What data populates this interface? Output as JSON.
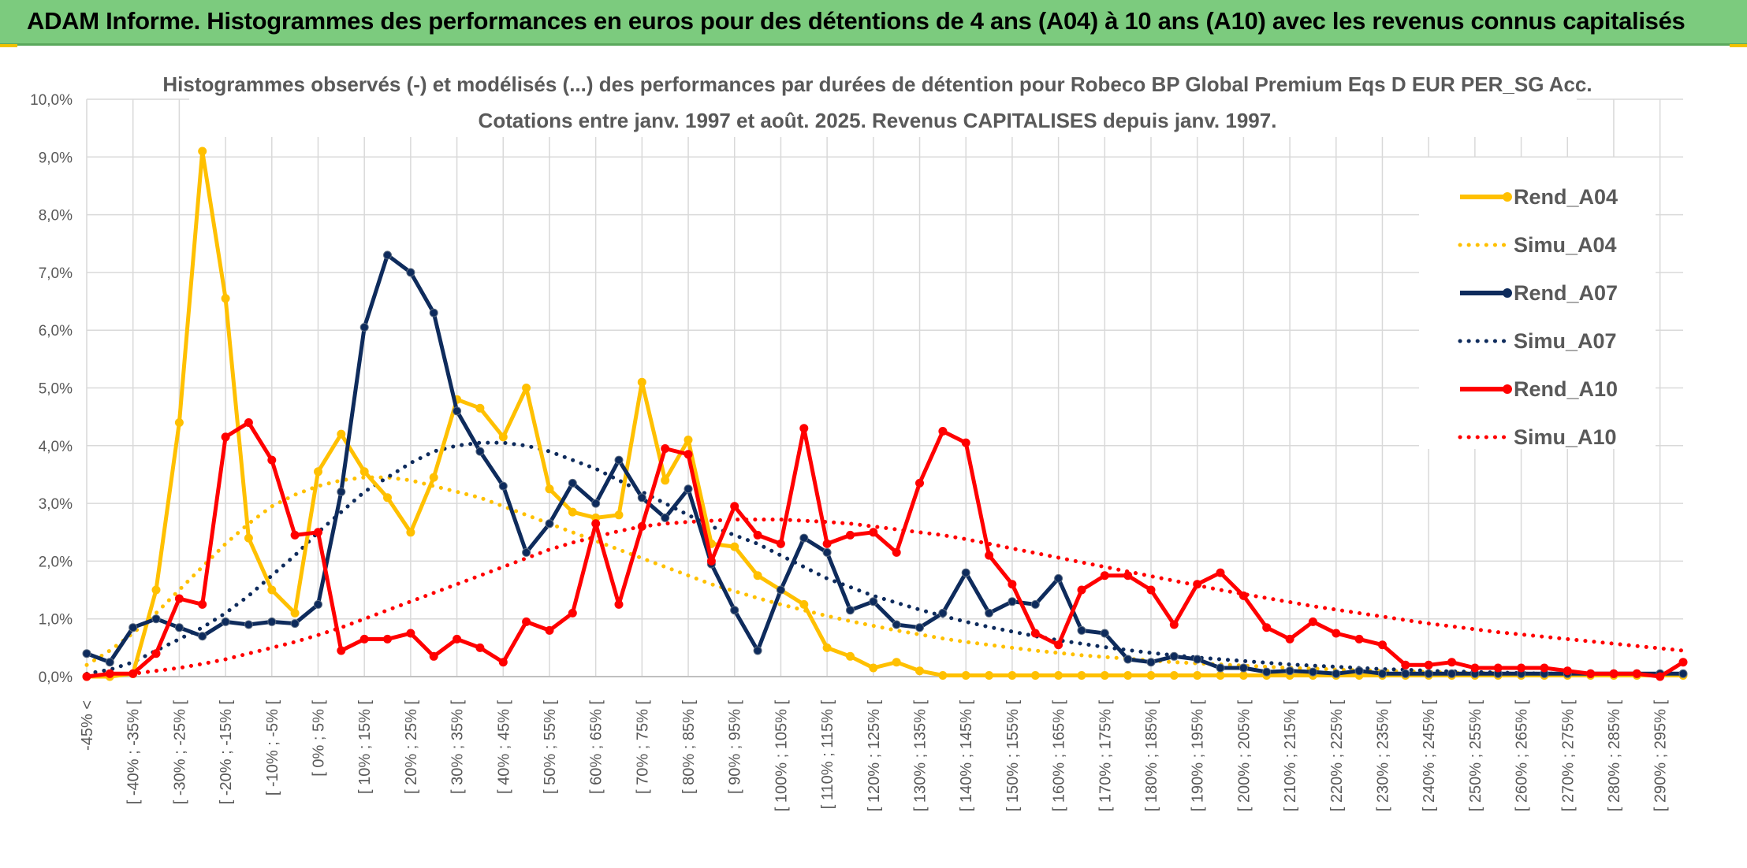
{
  "banner": {
    "title": "ADAM Informe. Histogrammes des performances en euros pour des détentions de 4 ans (A04) à 10 ans (A10) avec les revenus connus capitalisés"
  },
  "colors": {
    "banner": "#7ccb7e",
    "a04": "#FFC000",
    "a07": "#0E2B5C",
    "a10": "#FF0000",
    "grid": "#d9d9d9"
  },
  "chart_data": {
    "type": "line",
    "title_line1": "Histogrammes observés (-) et modélisés (...) des performances par durées de détention pour Robeco BP Global Premium Eqs D EUR PER_SG Acc.",
    "title_line2": "Cotations entre janv. 1997 et août. 2025. Revenus CAPITALISES depuis janv. 1997.",
    "ylim": [
      0,
      10
    ],
    "yticks": [
      "0,0%",
      "1,0%",
      "2,0%",
      "3,0%",
      "4,0%",
      "5,0%",
      "6,0%",
      "7,0%",
      "8,0%",
      "9,0%",
      "10,0%"
    ],
    "grid": true,
    "legend_position": "right",
    "categories": [
      "-45% <",
      "",
      "[ -40% ; -35% [",
      "",
      "[ -30% ; -25% [",
      "",
      "[ -20% ; -15% [",
      "",
      "[ -10% ; -5% [",
      "",
      "[ 0% ; 5% [",
      "",
      "[ 10% ; 15% [",
      "",
      "[ 20% ; 25% [",
      "",
      "[ 30% ; 35% [",
      "",
      "[ 40% ; 45% [",
      "",
      "[ 50% ; 55% [",
      "",
      "[ 60% ; 65% [",
      "",
      "[ 70% ; 75% [",
      "",
      "[ 80% ; 85% [",
      "",
      "[ 90% ; 95% [",
      "",
      "[ 100% ; 105% [",
      "",
      "[ 110% ; 115% [",
      "",
      "[ 120% ; 125% [",
      "",
      "[ 130% ; 135% [",
      "",
      "[ 140% ; 145% [",
      "",
      "[ 150% ; 155% [",
      "",
      "[ 160% ; 165% [",
      "",
      "[ 170% ; 175% [",
      "",
      "[ 180% ; 185% [",
      "",
      "[ 190% ; 195% [",
      "",
      "[ 200% ; 205% [",
      "",
      "[ 210% ; 215% [",
      "",
      "[ 220% ; 225% [",
      "",
      "[ 230% ; 235% [",
      "",
      "[ 240% ; 245% [",
      "",
      "[ 250% ; 255% [",
      "",
      "[ 260% ; 265% [",
      "",
      "[ 270% ; 275% [",
      "",
      "[ 280% ; 285% [",
      "",
      "[ 290% ; 295% [",
      ""
    ],
    "series": [
      {
        "name": "Rend_A04",
        "style": "solid",
        "color": "#FFC000",
        "values": [
          0.0,
          0.0,
          0.05,
          1.5,
          4.4,
          9.1,
          6.55,
          2.4,
          1.5,
          1.1,
          3.55,
          4.2,
          3.55,
          3.1,
          2.5,
          3.45,
          4.8,
          4.65,
          4.15,
          5.0,
          3.25,
          2.85,
          2.75,
          2.8,
          5.1,
          3.4,
          4.1,
          2.3,
          2.25,
          1.75,
          1.5,
          1.25,
          0.5,
          0.35,
          0.15,
          0.25,
          0.1,
          0.02,
          0.02,
          0.02,
          0.02,
          0.02,
          0.02,
          0.02,
          0.02,
          0.02,
          0.02,
          0.02,
          0.02,
          0.02,
          0.02,
          0.02,
          0.02,
          0.02,
          0.02,
          0.02,
          0.02,
          0.02,
          0.02,
          0.02,
          0.02,
          0.02,
          0.02,
          0.02,
          0.02,
          0.02,
          0.02,
          0.02,
          0.02,
          0.02
        ]
      },
      {
        "name": "Simu_A04",
        "style": "dotted",
        "color": "#FFC000",
        "values": [
          0.2,
          0.45,
          0.75,
          1.1,
          1.5,
          1.9,
          2.3,
          2.65,
          2.95,
          3.15,
          3.3,
          3.4,
          3.45,
          3.45,
          3.4,
          3.3,
          3.2,
          3.1,
          2.95,
          2.8,
          2.65,
          2.5,
          2.35,
          2.2,
          2.05,
          1.9,
          1.75,
          1.6,
          1.48,
          1.36,
          1.25,
          1.15,
          1.05,
          0.96,
          0.88,
          0.8,
          0.73,
          0.66,
          0.6,
          0.55,
          0.5,
          0.45,
          0.41,
          0.37,
          0.34,
          0.31,
          0.28,
          0.25,
          0.23,
          0.21,
          0.19,
          0.17,
          0.15,
          0.14,
          0.12,
          0.11,
          0.1,
          0.09,
          0.08,
          0.07,
          0.06,
          0.06,
          0.05,
          0.05,
          0.04,
          0.04,
          0.03,
          0.03,
          0.03,
          0.03
        ]
      },
      {
        "name": "Rend_A07",
        "style": "solid",
        "color": "#0E2B5C",
        "values": [
          0.4,
          0.25,
          0.85,
          1.0,
          0.85,
          0.7,
          0.95,
          0.9,
          0.95,
          0.92,
          1.25,
          3.2,
          6.05,
          7.3,
          7.0,
          6.3,
          4.6,
          3.9,
          3.3,
          2.15,
          2.65,
          3.35,
          3.0,
          3.75,
          3.1,
          2.75,
          3.25,
          1.95,
          1.15,
          0.45,
          1.5,
          2.4,
          2.15,
          1.15,
          1.3,
          0.9,
          0.85,
          1.1,
          1.8,
          1.1,
          1.3,
          1.25,
          1.7,
          0.8,
          0.75,
          0.3,
          0.25,
          0.35,
          0.3,
          0.15,
          0.15,
          0.08,
          0.1,
          0.08,
          0.05,
          0.1,
          0.05,
          0.05,
          0.05,
          0.05,
          0.05,
          0.05,
          0.05,
          0.05,
          0.05,
          0.05,
          0.05,
          0.05,
          0.05,
          0.05
        ]
      },
      {
        "name": "Simu_A07",
        "style": "dotted",
        "color": "#0E2B5C",
        "values": [
          0.05,
          0.12,
          0.25,
          0.45,
          0.65,
          0.85,
          1.1,
          1.4,
          1.75,
          2.1,
          2.5,
          2.85,
          3.2,
          3.45,
          3.7,
          3.9,
          4.0,
          4.05,
          4.05,
          4.0,
          3.9,
          3.75,
          3.6,
          3.4,
          3.2,
          3.0,
          2.8,
          2.6,
          2.45,
          2.3,
          2.1,
          1.9,
          1.7,
          1.55,
          1.4,
          1.28,
          1.16,
          1.05,
          0.95,
          0.86,
          0.78,
          0.7,
          0.63,
          0.57,
          0.51,
          0.46,
          0.41,
          0.37,
          0.33,
          0.3,
          0.27,
          0.24,
          0.21,
          0.19,
          0.17,
          0.15,
          0.13,
          0.12,
          0.1,
          0.09,
          0.08,
          0.07,
          0.06,
          0.05,
          0.05,
          0.04,
          0.04,
          0.03,
          0.03,
          0.02
        ]
      },
      {
        "name": "Rend_A10",
        "style": "solid",
        "color": "#FF0000",
        "values": [
          0.0,
          0.05,
          0.05,
          0.4,
          1.35,
          1.25,
          4.15,
          4.4,
          3.75,
          2.45,
          2.5,
          0.45,
          0.65,
          0.65,
          0.75,
          0.35,
          0.65,
          0.5,
          0.25,
          0.95,
          0.8,
          1.1,
          2.65,
          1.25,
          2.6,
          3.95,
          3.85,
          2.0,
          2.95,
          2.45,
          2.3,
          4.3,
          2.3,
          2.45,
          2.5,
          2.15,
          3.35,
          4.25,
          4.05,
          2.1,
          1.6,
          0.75,
          0.55,
          1.5,
          1.75,
          1.75,
          1.5,
          0.9,
          1.6,
          1.8,
          1.4,
          0.85,
          0.65,
          0.95,
          0.75,
          0.65,
          0.55,
          0.2,
          0.2,
          0.25,
          0.15,
          0.15,
          0.15,
          0.15,
          0.1,
          0.05,
          0.05,
          0.05,
          0.0,
          0.25
        ]
      },
      {
        "name": "Simu_A10",
        "style": "dotted",
        "color": "#FF0000",
        "values": [
          0.0,
          0.02,
          0.05,
          0.1,
          0.15,
          0.22,
          0.3,
          0.4,
          0.5,
          0.6,
          0.72,
          0.85,
          1.0,
          1.15,
          1.3,
          1.45,
          1.6,
          1.75,
          1.9,
          2.05,
          2.2,
          2.32,
          2.42,
          2.52,
          2.6,
          2.65,
          2.68,
          2.7,
          2.72,
          2.72,
          2.72,
          2.7,
          2.68,
          2.65,
          2.6,
          2.55,
          2.5,
          2.45,
          2.38,
          2.3,
          2.22,
          2.14,
          2.06,
          1.98,
          1.9,
          1.82,
          1.74,
          1.66,
          1.58,
          1.5,
          1.43,
          1.36,
          1.29,
          1.22,
          1.16,
          1.1,
          1.04,
          0.98,
          0.92,
          0.87,
          0.82,
          0.77,
          0.73,
          0.69,
          0.65,
          0.61,
          0.57,
          0.53,
          0.49,
          0.45
        ]
      }
    ]
  }
}
